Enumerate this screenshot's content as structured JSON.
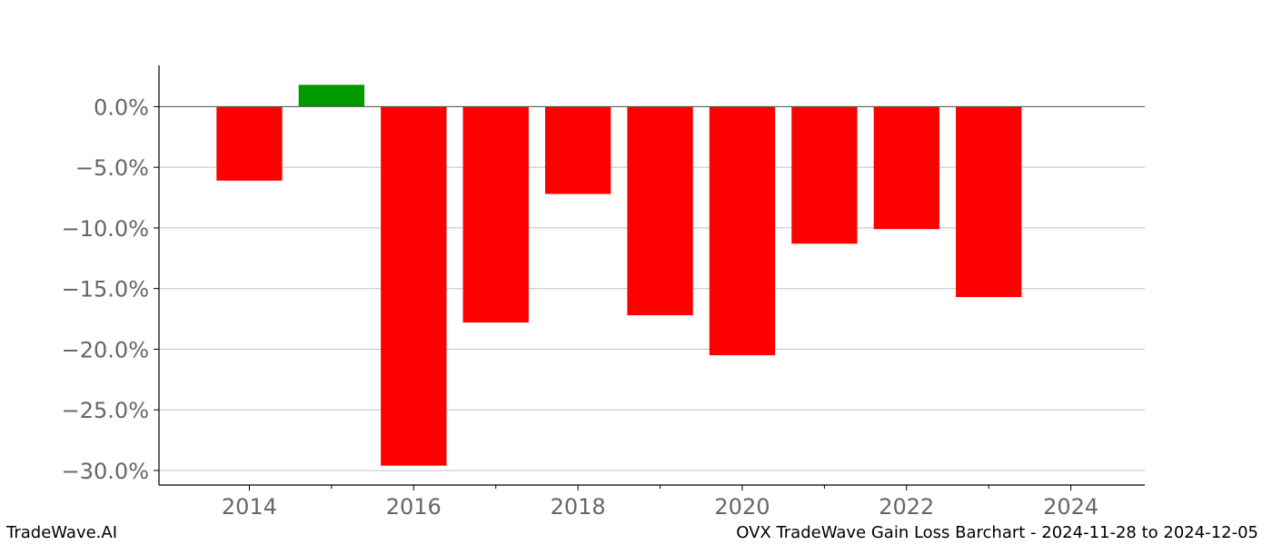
{
  "footer": {
    "brand": "TradeWave.AI",
    "caption": "OVX TradeWave Gain Loss Barchart - 2024-11-28 to 2024-12-05"
  },
  "colors": {
    "gain": "#009900",
    "loss": "#ff0000",
    "grid": "#c0c0c0",
    "axis": "#000000",
    "tick_text": "#666666"
  },
  "chart_data": {
    "type": "bar",
    "title": "",
    "xlabel": "",
    "ylabel": "",
    "x": [
      2014,
      2015,
      2016,
      2017,
      2018,
      2019,
      2020,
      2021,
      2022,
      2023
    ],
    "values": [
      -6.1,
      1.8,
      -29.6,
      -17.8,
      -7.2,
      -17.2,
      -20.5,
      -11.3,
      -10.1,
      -15.7
    ],
    "value_unit": "%",
    "xlim": [
      2012.9,
      2024.9
    ],
    "ylim": [
      -31.2,
      3.4
    ],
    "xticks": [
      2014,
      2016,
      2018,
      2020,
      2022,
      2024
    ],
    "xtick_labels": [
      "2014",
      "2016",
      "2018",
      "2020",
      "2022",
      "2024"
    ],
    "yticks": [
      0,
      -5,
      -10,
      -15,
      -20,
      -25,
      -30
    ],
    "ytick_labels": [
      "0.0%",
      "−5.0%",
      "−10.0%",
      "−15.0%",
      "−20.0%",
      "−25.0%",
      "−30.0%"
    ],
    "grid": "horizontal",
    "legend": "none"
  }
}
